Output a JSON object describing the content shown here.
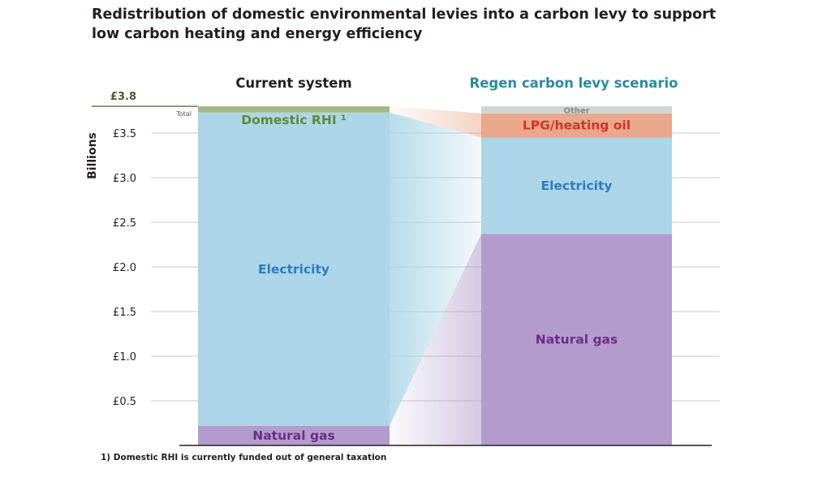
{
  "title": "Redistribution of domestic environmental levies into a carbon levy to support low carbon heating and energy efficiency",
  "footnote": "1) Domestic RHI is currently funded out of general taxation",
  "chart_data": {
    "type": "bar",
    "stacked": true,
    "ylabel": "Billions",
    "ylim": [
      0,
      3.8
    ],
    "y_ticks": [
      {
        "value": 0.5,
        "label": "£0.5"
      },
      {
        "value": 1.0,
        "label": "£1.0"
      },
      {
        "value": 1.5,
        "label": "£1.5"
      },
      {
        "value": 2.0,
        "label": "£2.0"
      },
      {
        "value": 2.5,
        "label": "£2.5"
      },
      {
        "value": 3.0,
        "label": "£3.0"
      },
      {
        "value": 3.5,
        "label": "£3.5"
      }
    ],
    "total_marker": {
      "value": 3.8,
      "label": "£3.8",
      "note": "Total"
    },
    "grid": true,
    "bars": [
      {
        "name": "Current system",
        "segments": [
          {
            "label": "Natural gas",
            "value": 0.22,
            "color": "#b39ccc",
            "text_color": "#6b2d8a"
          },
          {
            "label": "Electricity",
            "value": 3.51,
            "color": "#acd5e7",
            "text_color": "#2b7cc4"
          },
          {
            "label": "Domestic RHI ¹",
            "value": 0.07,
            "color": "#a4b986",
            "text_color": "#5b8a3a"
          }
        ]
      },
      {
        "name": "Regen carbon levy scenario",
        "segments": [
          {
            "label": "Natural gas",
            "value": 2.37,
            "color": "#b39ccc",
            "text_color": "#6b2d8a"
          },
          {
            "label": "Electricity",
            "value": 1.08,
            "color": "#acd5e7",
            "text_color": "#2b7cc4"
          },
          {
            "label": "LPG/heating oil",
            "value": 0.27,
            "color": "#e8a88c",
            "text_color": "#d7322a"
          },
          {
            "label": "Other",
            "value": 0.08,
            "color": "#d2d3d5",
            "text_color": "#8a8a8a"
          }
        ]
      }
    ],
    "bar_title_colors": [
      "#231f20",
      "#2c8ba0"
    ],
    "marker_color": "#5b5330",
    "gridline_color": "#c8c8c8",
    "axis_color": "#231f20"
  }
}
